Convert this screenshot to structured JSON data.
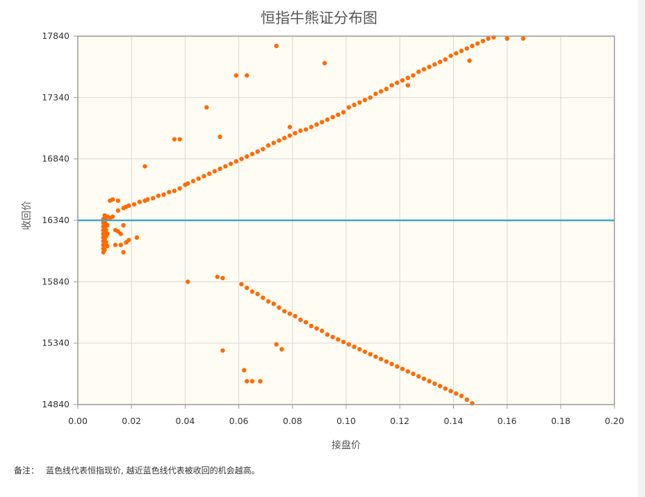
{
  "chart_data": {
    "type": "scatter",
    "title": "恒指牛熊证分布图",
    "xlabel": "接盘价",
    "ylabel": "收回价",
    "xlim": [
      0.0,
      0.2
    ],
    "ylim": [
      14840,
      17840
    ],
    "x_ticks": [
      "0.00",
      "0.02",
      "0.04",
      "0.06",
      "0.08",
      "0.10",
      "0.12",
      "0.14",
      "0.16",
      "0.18",
      "0.20"
    ],
    "y_ticks": [
      "14840",
      "15340",
      "15840",
      "16340",
      "16840",
      "17340",
      "17840"
    ],
    "grid": true,
    "reference_line": {
      "y": 16340,
      "color": "#3aa8c5"
    },
    "colors": {
      "points": "#ff6a00",
      "plot_background": "#fffcf3",
      "grid": "#d8d8d8",
      "axis": "#999999"
    },
    "series": [
      {
        "name": "",
        "points": [
          [
            0.0095,
            16350
          ],
          [
            0.0095,
            16320
          ],
          [
            0.0095,
            16290
          ],
          [
            0.0095,
            16260
          ],
          [
            0.0095,
            16230
          ],
          [
            0.0095,
            16200
          ],
          [
            0.0095,
            16170
          ],
          [
            0.0095,
            16140
          ],
          [
            0.0095,
            16110
          ],
          [
            0.0095,
            16080
          ],
          [
            0.01,
            16380
          ],
          [
            0.01,
            16330
          ],
          [
            0.01,
            16280
          ],
          [
            0.01,
            16240
          ],
          [
            0.01,
            16190
          ],
          [
            0.01,
            16150
          ],
          [
            0.01,
            16100
          ],
          [
            0.0105,
            16360
          ],
          [
            0.0105,
            16310
          ],
          [
            0.0105,
            16260
          ],
          [
            0.0105,
            16210
          ],
          [
            0.0105,
            16160
          ],
          [
            0.011,
            16370
          ],
          [
            0.011,
            16300
          ],
          [
            0.011,
            16230
          ],
          [
            0.011,
            16130
          ],
          [
            0.012,
            16360
          ],
          [
            0.012,
            16500
          ],
          [
            0.013,
            16510
          ],
          [
            0.013,
            16370
          ],
          [
            0.014,
            16260
          ],
          [
            0.014,
            16140
          ],
          [
            0.015,
            16250
          ],
          [
            0.015,
            16500
          ],
          [
            0.015,
            16420
          ],
          [
            0.016,
            16230
          ],
          [
            0.016,
            16140
          ],
          [
            0.017,
            16080
          ],
          [
            0.017,
            16300
          ],
          [
            0.017,
            16440
          ],
          [
            0.018,
            16160
          ],
          [
            0.018,
            16450
          ],
          [
            0.019,
            16180
          ],
          [
            0.019,
            16460
          ],
          [
            0.021,
            16470
          ],
          [
            0.022,
            16200
          ],
          [
            0.023,
            16490
          ],
          [
            0.025,
            16500
          ],
          [
            0.026,
            16510
          ],
          [
            0.028,
            16520
          ],
          [
            0.03,
            16540
          ],
          [
            0.032,
            16550
          ],
          [
            0.034,
            16570
          ],
          [
            0.036,
            16580
          ],
          [
            0.038,
            16600
          ],
          [
            0.04,
            16630
          ],
          [
            0.041,
            16640
          ],
          [
            0.043,
            16660
          ],
          [
            0.045,
            16680
          ],
          [
            0.047,
            16700
          ],
          [
            0.049,
            16720
          ],
          [
            0.051,
            16740
          ],
          [
            0.053,
            16760
          ],
          [
            0.055,
            16780
          ],
          [
            0.057,
            16800
          ],
          [
            0.059,
            16820
          ],
          [
            0.061,
            16840
          ],
          [
            0.063,
            16860
          ],
          [
            0.065,
            16880
          ],
          [
            0.067,
            16900
          ],
          [
            0.069,
            16920
          ],
          [
            0.071,
            16950
          ],
          [
            0.073,
            16970
          ],
          [
            0.075,
            16990
          ],
          [
            0.077,
            17010
          ],
          [
            0.079,
            17030
          ],
          [
            0.081,
            17050
          ],
          [
            0.083,
            17070
          ],
          [
            0.085,
            17080
          ],
          [
            0.087,
            17100
          ],
          [
            0.089,
            17120
          ],
          [
            0.091,
            17140
          ],
          [
            0.093,
            17160
          ],
          [
            0.095,
            17180
          ],
          [
            0.097,
            17200
          ],
          [
            0.099,
            17220
          ],
          [
            0.101,
            17260
          ],
          [
            0.103,
            17280
          ],
          [
            0.105,
            17300
          ],
          [
            0.107,
            17320
          ],
          [
            0.109,
            17340
          ],
          [
            0.111,
            17370
          ],
          [
            0.113,
            17390
          ],
          [
            0.115,
            17410
          ],
          [
            0.117,
            17440
          ],
          [
            0.119,
            17460
          ],
          [
            0.121,
            17480
          ],
          [
            0.123,
            17500
          ],
          [
            0.125,
            17520
          ],
          [
            0.127,
            17550
          ],
          [
            0.129,
            17570
          ],
          [
            0.131,
            17590
          ],
          [
            0.133,
            17610
          ],
          [
            0.135,
            17630
          ],
          [
            0.137,
            17650
          ],
          [
            0.139,
            17680
          ],
          [
            0.141,
            17700
          ],
          [
            0.143,
            17720
          ],
          [
            0.145,
            17740
          ],
          [
            0.147,
            17760
          ],
          [
            0.149,
            17780
          ],
          [
            0.151,
            17800
          ],
          [
            0.153,
            17820
          ],
          [
            0.155,
            17830
          ],
          [
            0.16,
            17820
          ],
          [
            0.166,
            17820
          ],
          [
            0.025,
            16780
          ],
          [
            0.036,
            17000
          ],
          [
            0.038,
            17000
          ],
          [
            0.048,
            17260
          ],
          [
            0.053,
            17020
          ],
          [
            0.059,
            17520
          ],
          [
            0.063,
            17520
          ],
          [
            0.074,
            17760
          ],
          [
            0.079,
            17100
          ],
          [
            0.092,
            17620
          ],
          [
            0.123,
            17440
          ],
          [
            0.146,
            17640
          ],
          [
            0.041,
            15840
          ],
          [
            0.052,
            15880
          ],
          [
            0.054,
            15870
          ],
          [
            0.054,
            15280
          ],
          [
            0.062,
            15120
          ],
          [
            0.063,
            15030
          ],
          [
            0.065,
            15030
          ],
          [
            0.068,
            15030
          ],
          [
            0.074,
            15330
          ],
          [
            0.076,
            15290
          ],
          [
            0.061,
            15820
          ],
          [
            0.063,
            15790
          ],
          [
            0.065,
            15760
          ],
          [
            0.067,
            15740
          ],
          [
            0.069,
            15710
          ],
          [
            0.071,
            15680
          ],
          [
            0.073,
            15660
          ],
          [
            0.075,
            15630
          ],
          [
            0.077,
            15600
          ],
          [
            0.079,
            15580
          ],
          [
            0.081,
            15560
          ],
          [
            0.083,
            15530
          ],
          [
            0.085,
            15510
          ],
          [
            0.087,
            15480
          ],
          [
            0.089,
            15460
          ],
          [
            0.091,
            15440
          ],
          [
            0.093,
            15410
          ],
          [
            0.095,
            15390
          ],
          [
            0.097,
            15370
          ],
          [
            0.099,
            15350
          ],
          [
            0.101,
            15330
          ],
          [
            0.103,
            15310
          ],
          [
            0.105,
            15290
          ],
          [
            0.107,
            15270
          ],
          [
            0.109,
            15250
          ],
          [
            0.111,
            15230
          ],
          [
            0.113,
            15210
          ],
          [
            0.115,
            15190
          ],
          [
            0.117,
            15170
          ],
          [
            0.119,
            15150
          ],
          [
            0.121,
            15130
          ],
          [
            0.123,
            15110
          ],
          [
            0.125,
            15090
          ],
          [
            0.127,
            15070
          ],
          [
            0.129,
            15050
          ],
          [
            0.131,
            15030
          ],
          [
            0.133,
            15010
          ],
          [
            0.135,
            14990
          ],
          [
            0.137,
            14970
          ],
          [
            0.139,
            14950
          ],
          [
            0.141,
            14930
          ],
          [
            0.143,
            14910
          ],
          [
            0.145,
            14880
          ],
          [
            0.147,
            14850
          ]
        ]
      }
    ]
  },
  "footnote": {
    "lead": "备注：",
    "text": "蓝色线代表恒指现价, 越近蓝色线代表被收回的机会越高。"
  }
}
